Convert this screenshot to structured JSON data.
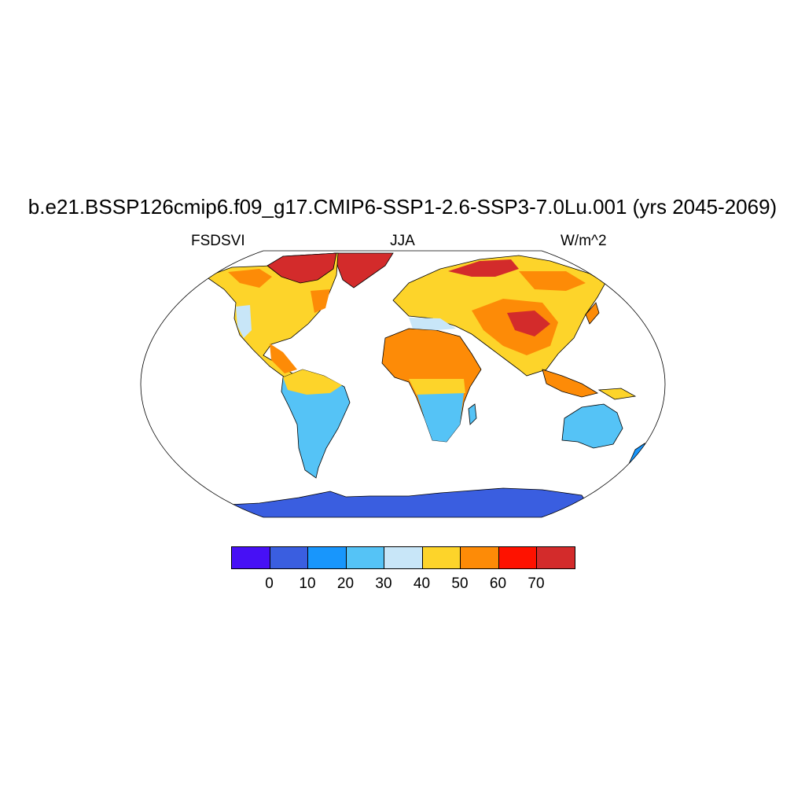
{
  "title": "b.e21.BSSP126cmip6.f09_g17.CMIP6-SSP1-2.6-SSP3-7.0Lu.001 (yrs 2045-2069)",
  "subtitle": {
    "left": "FSDSVI",
    "center": "JJA",
    "right": "W/m^2"
  },
  "colorbar": {
    "colors": [
      "#4710f5",
      "#3a5ee0",
      "#1896fc",
      "#55c3f6",
      "#c8e6f8",
      "#fdd42a",
      "#fd8b07",
      "#fe1200",
      "#d32b2b"
    ],
    "labels": [
      "0",
      "10",
      "20",
      "30",
      "40",
      "50",
      "60",
      "70"
    ]
  },
  "legend_labels": {
    "values": [
      0,
      10,
      20,
      30,
      40,
      50,
      60,
      70
    ]
  }
}
